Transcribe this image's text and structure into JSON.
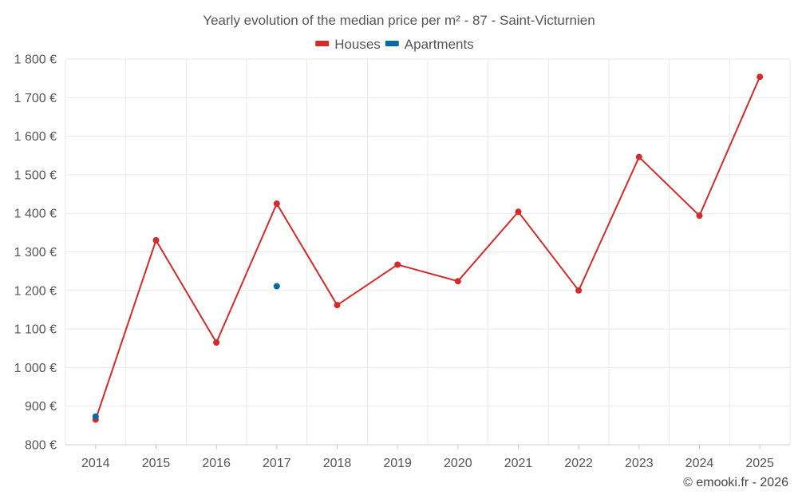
{
  "chart_data": {
    "type": "line",
    "title": "Yearly evolution of the median price per m² - 87 - Saint-Victurnien",
    "xlabel": "",
    "ylabel": "",
    "categories": [
      "2014",
      "2015",
      "2016",
      "2017",
      "2018",
      "2019",
      "2020",
      "2021",
      "2022",
      "2023",
      "2024",
      "2025"
    ],
    "ylim": [
      800,
      1800
    ],
    "yticks": [
      800,
      900,
      1000,
      1100,
      1200,
      1300,
      1400,
      1500,
      1600,
      1700,
      1800
    ],
    "ytick_labels": [
      "800 €",
      "900 €",
      "1 000 €",
      "1 100 €",
      "1 200 €",
      "1 300 €",
      "1 400 €",
      "1 500 €",
      "1 600 €",
      "1 700 €",
      "1 800 €"
    ],
    "grid": true,
    "legend_position": "top-center",
    "series": [
      {
        "name": "Houses",
        "color": "#d32a2a",
        "values": [
          865,
          1330,
          1065,
          1425,
          1162,
          1267,
          1224,
          1404,
          1200,
          1546,
          1394,
          1754
        ]
      },
      {
        "name": "Apartments",
        "color": "#0a6a9c",
        "values": [
          873,
          null,
          null,
          1211,
          null,
          null,
          null,
          null,
          null,
          null,
          null,
          null
        ]
      }
    ],
    "credit": "© emooki.fr - 2026"
  }
}
